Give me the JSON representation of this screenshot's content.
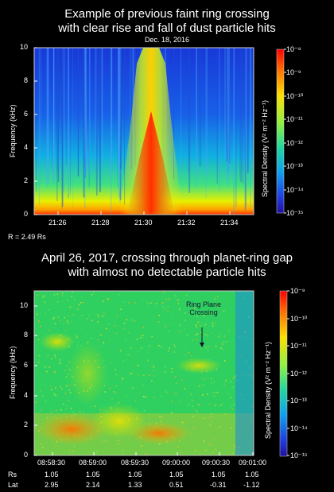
{
  "chart_data": [
    {
      "type": "heatmap",
      "title": "Example of previous faint ring crossing with clear rise and fall of dust particle hits",
      "title_lines": [
        "Example of previous faint ring crossing",
        "with clear rise and fall of dust particle hits"
      ],
      "subtitle": "Dec. 18, 2016",
      "ylabel": "Frequency (kHz)",
      "ylim": [
        0,
        10
      ],
      "yticks": [
        "0",
        "2",
        "4",
        "6",
        "8",
        "10"
      ],
      "xticks": [
        "21:26",
        "21:28",
        "21:30",
        "21:32",
        "21:34"
      ],
      "note": "R = 2.49 Rs",
      "colorbar": {
        "label": "Spectral Density (V² m⁻² Hz⁻¹)",
        "ticks": [
          "10⁻⁸",
          "10⁻⁹",
          "10⁻¹⁰",
          "10⁻¹¹",
          "10⁻¹²",
          "10⁻¹³",
          "10⁻¹⁴",
          "10⁻¹⁵"
        ]
      }
    },
    {
      "type": "heatmap",
      "title": "April 26, 2017, crossing through planet-ring gap with almost no detectable particle hits",
      "title_lines": [
        "April 26, 2017, crossing through planet-ring gap",
        "with almost no detectable particle hits"
      ],
      "ylabel": "Frequency (kHz)",
      "ylim": [
        0,
        11
      ],
      "yticks": [
        "0",
        "2",
        "4",
        "6",
        "8",
        "10"
      ],
      "xticks": [
        "08:58:30",
        "08:59:00",
        "08:59:30",
        "09:00:00",
        "09:00:30",
        "09:01:00"
      ],
      "annotation": [
        "Ring Plane",
        "Crossing"
      ],
      "ephemeris": {
        "rows": [
          {
            "label": "Rs",
            "values": [
              "1.05",
              "1.05",
              "1.05",
              "1.05",
              "1.05",
              "1.05"
            ]
          },
          {
            "label": "Lat",
            "values": [
              "2.95",
              "2.14",
              "1.33",
              "0.51",
              "-0.31",
              "-1.12"
            ]
          }
        ]
      },
      "colorbar": {
        "label": "Spectral Density (V² m⁻² Hz⁻¹)",
        "ticks": [
          "10⁻⁹",
          "10⁻¹⁰",
          "10⁻¹¹",
          "10⁻¹²",
          "10⁻¹³",
          "10⁻¹⁴",
          "10⁻¹⁵"
        ]
      }
    }
  ]
}
